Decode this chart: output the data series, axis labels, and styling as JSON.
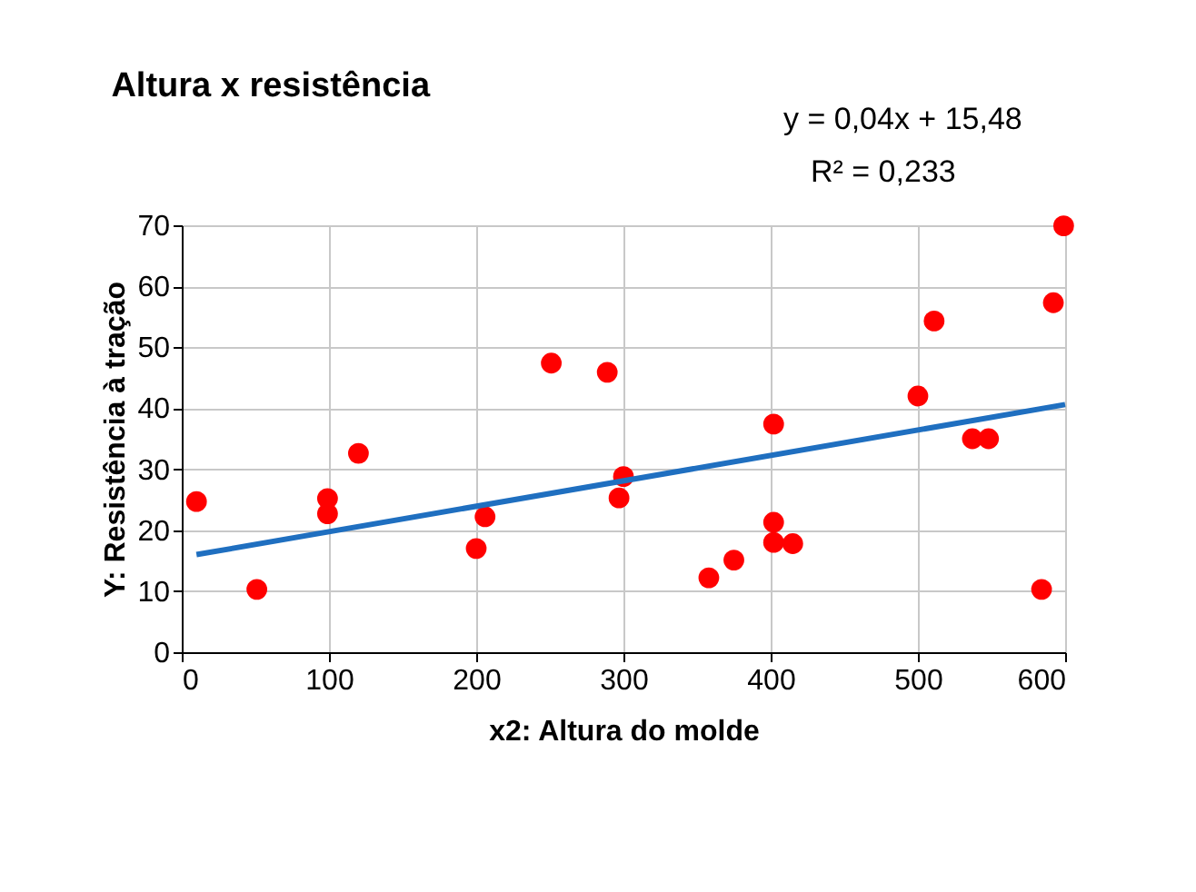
{
  "chart_data": {
    "type": "scatter",
    "title": "Altura x resistência",
    "xlabel": "x2: Altura do molde",
    "ylabel": "Y: Resistência à tração",
    "annotations": [
      "y = 0,04x + 15,48",
      "R² = 0,233"
    ],
    "series": [
      {
        "color": "#ff0000",
        "marker": "circle",
        "x": [
          10,
          51,
          99,
          99,
          120,
          200,
          206,
          251,
          289,
          300,
          297,
          358,
          375,
          402,
          402,
          402,
          415,
          500,
          511,
          537,
          548,
          584,
          592,
          599
        ],
        "values": [
          24.7,
          10.3,
          25.2,
          22.7,
          32.6,
          17,
          22.2,
          47.4,
          45.9,
          28.8,
          25.3,
          12.2,
          15.1,
          37.4,
          21.3,
          18,
          17.8,
          42,
          54.3,
          35,
          35,
          10.3,
          57.3,
          69.9
        ]
      },
      {
        "type": "line",
        "color": "#1f6fc0",
        "x": [
          10,
          600
        ],
        "values": [
          16,
          40.6
        ]
      }
    ],
    "xlim": [
      0,
      600
    ],
    "xticks": [
      0,
      100,
      200,
      300,
      400,
      500,
      600
    ],
    "ylim": [
      0,
      70
    ],
    "yticks": [
      0,
      10,
      20,
      30,
      40,
      50,
      60,
      70
    ],
    "grid": true
  }
}
